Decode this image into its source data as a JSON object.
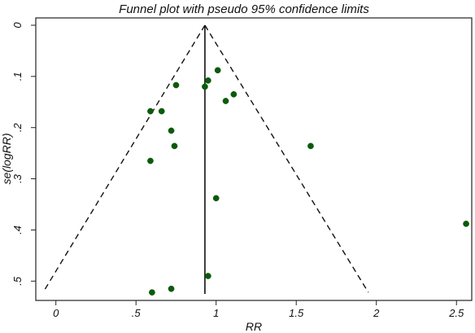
{
  "chart_data": {
    "type": "scatter",
    "title": "Funnel plot with pseudo 95% confidence limits",
    "xlabel": "RR",
    "ylabel": "se(logRR)",
    "xlim": [
      -0.1,
      2.58
    ],
    "ylim": [
      0,
      0.525
    ],
    "y_reversed": true,
    "x_ticks": [
      {
        "value": 0,
        "label": "0"
      },
      {
        "value": 0.5,
        "label": ".5"
      },
      {
        "value": 1,
        "label": "1"
      },
      {
        "value": 1.5,
        "label": "1.5"
      },
      {
        "value": 2,
        "label": "2"
      },
      {
        "value": 2.5,
        "label": "2.5"
      }
    ],
    "y_ticks": [
      {
        "value": 0,
        "label": "0"
      },
      {
        "value": 0.1,
        "label": ".1"
      },
      {
        "value": 0.2,
        "label": ".2"
      },
      {
        "value": 0.3,
        "label": ".3"
      },
      {
        "value": 0.4,
        "label": ".4"
      },
      {
        "value": 0.5,
        "label": ".5"
      }
    ],
    "grid": false,
    "pooled_rr": 0.93,
    "funnel_limits": {
      "left": [
        {
          "x": 0.93,
          "y": 0
        },
        {
          "x": -0.08,
          "y": 0.522
        }
      ],
      "right": [
        {
          "x": 0.93,
          "y": 0
        },
        {
          "x": 1.95,
          "y": 0.522
        }
      ]
    },
    "point_color": "#0b5a0b",
    "points": [
      {
        "x": 1.01,
        "y": 0.088
      },
      {
        "x": 0.95,
        "y": 0.108
      },
      {
        "x": 0.93,
        "y": 0.12
      },
      {
        "x": 0.75,
        "y": 0.117
      },
      {
        "x": 1.11,
        "y": 0.135
      },
      {
        "x": 1.06,
        "y": 0.148
      },
      {
        "x": 0.59,
        "y": 0.168
      },
      {
        "x": 0.66,
        "y": 0.168
      },
      {
        "x": 0.72,
        "y": 0.206
      },
      {
        "x": 0.74,
        "y": 0.236
      },
      {
        "x": 1.59,
        "y": 0.236
      },
      {
        "x": 0.59,
        "y": 0.265
      },
      {
        "x": 1.0,
        "y": 0.338
      },
      {
        "x": 2.56,
        "y": 0.388
      },
      {
        "x": 0.95,
        "y": 0.49
      },
      {
        "x": 0.72,
        "y": 0.515
      },
      {
        "x": 0.6,
        "y": 0.522
      }
    ]
  }
}
